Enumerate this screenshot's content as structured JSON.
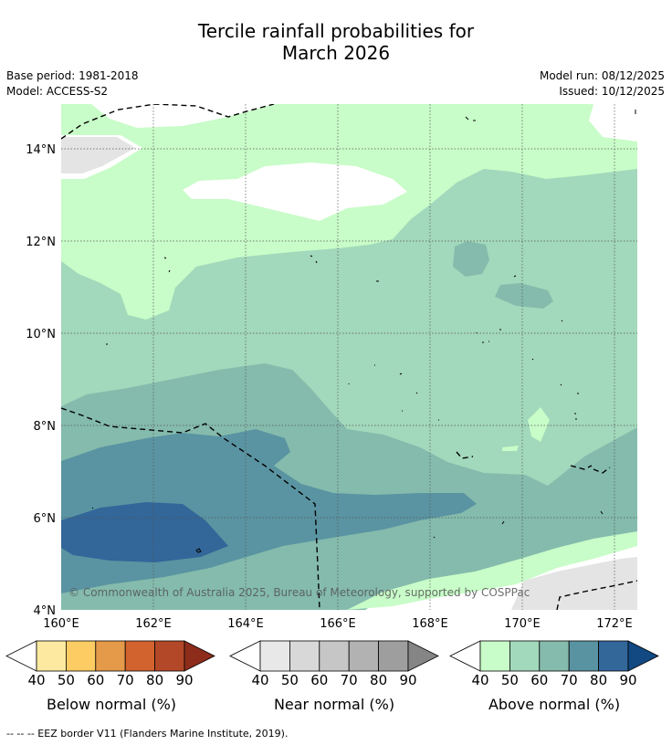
{
  "title_line1": "Tercile rainfall probabilities for",
  "title_line2": "March 2026",
  "base_period": "Base period: 1981-2018",
  "model": "Model: ACCESS-S2",
  "model_run": "Model run: 08/12/2025",
  "issued": "Issued: 10/12/2025",
  "copyright": "© Commonwealth of Australia 2025, Bureau of Meteorology, supported by COSPPac",
  "map": {
    "lon_labels": [
      "160°E",
      "162°E",
      "164°E",
      "166°E",
      "168°E",
      "170°E",
      "172°E"
    ],
    "lat_labels": [
      "14°N",
      "12°N",
      "10°N",
      "8°N",
      "6°N",
      "4°N"
    ],
    "lon_range": [
      160,
      172.5
    ],
    "lat_range": [
      4,
      15.1
    ]
  },
  "colorbars": [
    {
      "name": "below",
      "label": "Below normal (%)",
      "ticks": [
        "40",
        "50",
        "60",
        "70",
        "80",
        "90"
      ],
      "colors": [
        "#fdeaa0",
        "#fdcc63",
        "#e59a4a",
        "#d2622e",
        "#b34828",
        "#8e2c1b"
      ]
    },
    {
      "name": "near",
      "label": "Near normal (%)",
      "ticks": [
        "40",
        "50",
        "60",
        "70",
        "80",
        "90"
      ],
      "colors": [
        "#e8e8e8",
        "#d8d8d8",
        "#c6c6c6",
        "#b2b2b2",
        "#9e9e9e",
        "#858585"
      ]
    },
    {
      "name": "above",
      "label": "Above normal (%)",
      "ticks": [
        "40",
        "50",
        "60",
        "70",
        "80",
        "90"
      ],
      "colors": [
        "#c8fcc8",
        "#a2d8bb",
        "#84bbac",
        "#5993a2",
        "#336699",
        "#124983"
      ]
    }
  ],
  "footer": "--  --  -- EEZ border V11 (Flanders Marine Institute, 2019)."
}
